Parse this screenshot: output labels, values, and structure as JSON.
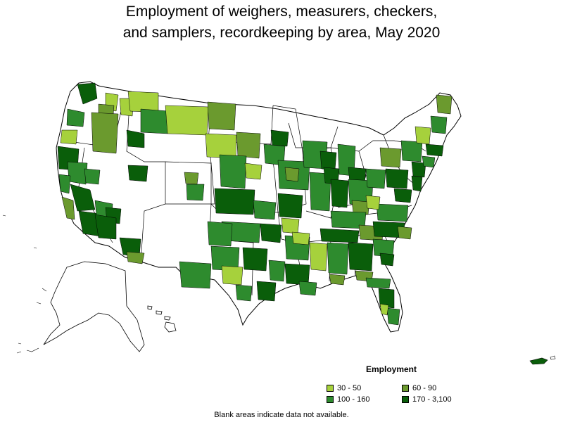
{
  "title": {
    "line1": "Employment of weighers, measurers, checkers,",
    "line2": "and samplers, recordkeeping by area, May 2020"
  },
  "legend": {
    "title": "Employment",
    "items": [
      {
        "label": "30 - 50",
        "color": "#a6d13c"
      },
      {
        "label": "60 - 90",
        "color": "#6b9a2e"
      },
      {
        "label": "100 - 160",
        "color": "#2e8b2e"
      },
      {
        "label": "170 - 3,100",
        "color": "#0a5e0a"
      }
    ]
  },
  "note": "Blank areas indicate data not available.",
  "colors": {
    "outline": "#000000",
    "no_data": "#ffffff"
  }
}
